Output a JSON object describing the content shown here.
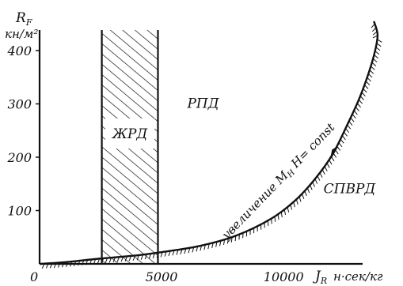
{
  "chart_data": {
    "type": "line",
    "title": "",
    "xlabel": "J_R н·сек/кг",
    "xlabel_main": "J",
    "xlabel_sub": "R",
    "xlabel_unit": "н·сек/кг",
    "ylabel": "R_F кн/м²",
    "ylabel_main": "R",
    "ylabel_sub": "F",
    "ylabel_unit": "кн/м²",
    "xlim": [
      0,
      14600
    ],
    "ylim": [
      0,
      480
    ],
    "x_ticks": [
      {
        "value": 0,
        "label": "0"
      },
      {
        "value": 5000,
        "label": "5000"
      },
      {
        "value": 10000,
        "label": "10000"
      }
    ],
    "y_ticks": [
      {
        "value": 100,
        "label": "100"
      },
      {
        "value": 200,
        "label": "200"
      },
      {
        "value": 300,
        "label": "300"
      },
      {
        "value": 400,
        "label": "400"
      }
    ],
    "grid": false,
    "series": [
      {
        "x": [
          0,
          1000,
          2500,
          4000,
          5000,
          6500,
          8000,
          9500,
          10500,
          11300,
          12000,
          12600,
          13100,
          13500,
          13750,
          13850,
          13700
        ],
        "y": [
          0,
          3,
          10,
          16,
          22,
          33,
          52,
          85,
          120,
          160,
          205,
          260,
          310,
          360,
          400,
          430,
          455
        ]
      }
    ],
    "region_jrd": {
      "x0": 2550,
      "x1": 4850,
      "label": "ЖРД"
    },
    "region_labels": [
      {
        "text": "РПД",
        "x": 6700,
        "y": 300
      },
      {
        "text": "СПВРД",
        "x": 12700,
        "y": 140
      }
    ],
    "annotation": {
      "text": "увеличение M",
      "sub": "H",
      "main2": " H",
      "tail": "= const",
      "x": 9900,
      "y": 150
    }
  }
}
